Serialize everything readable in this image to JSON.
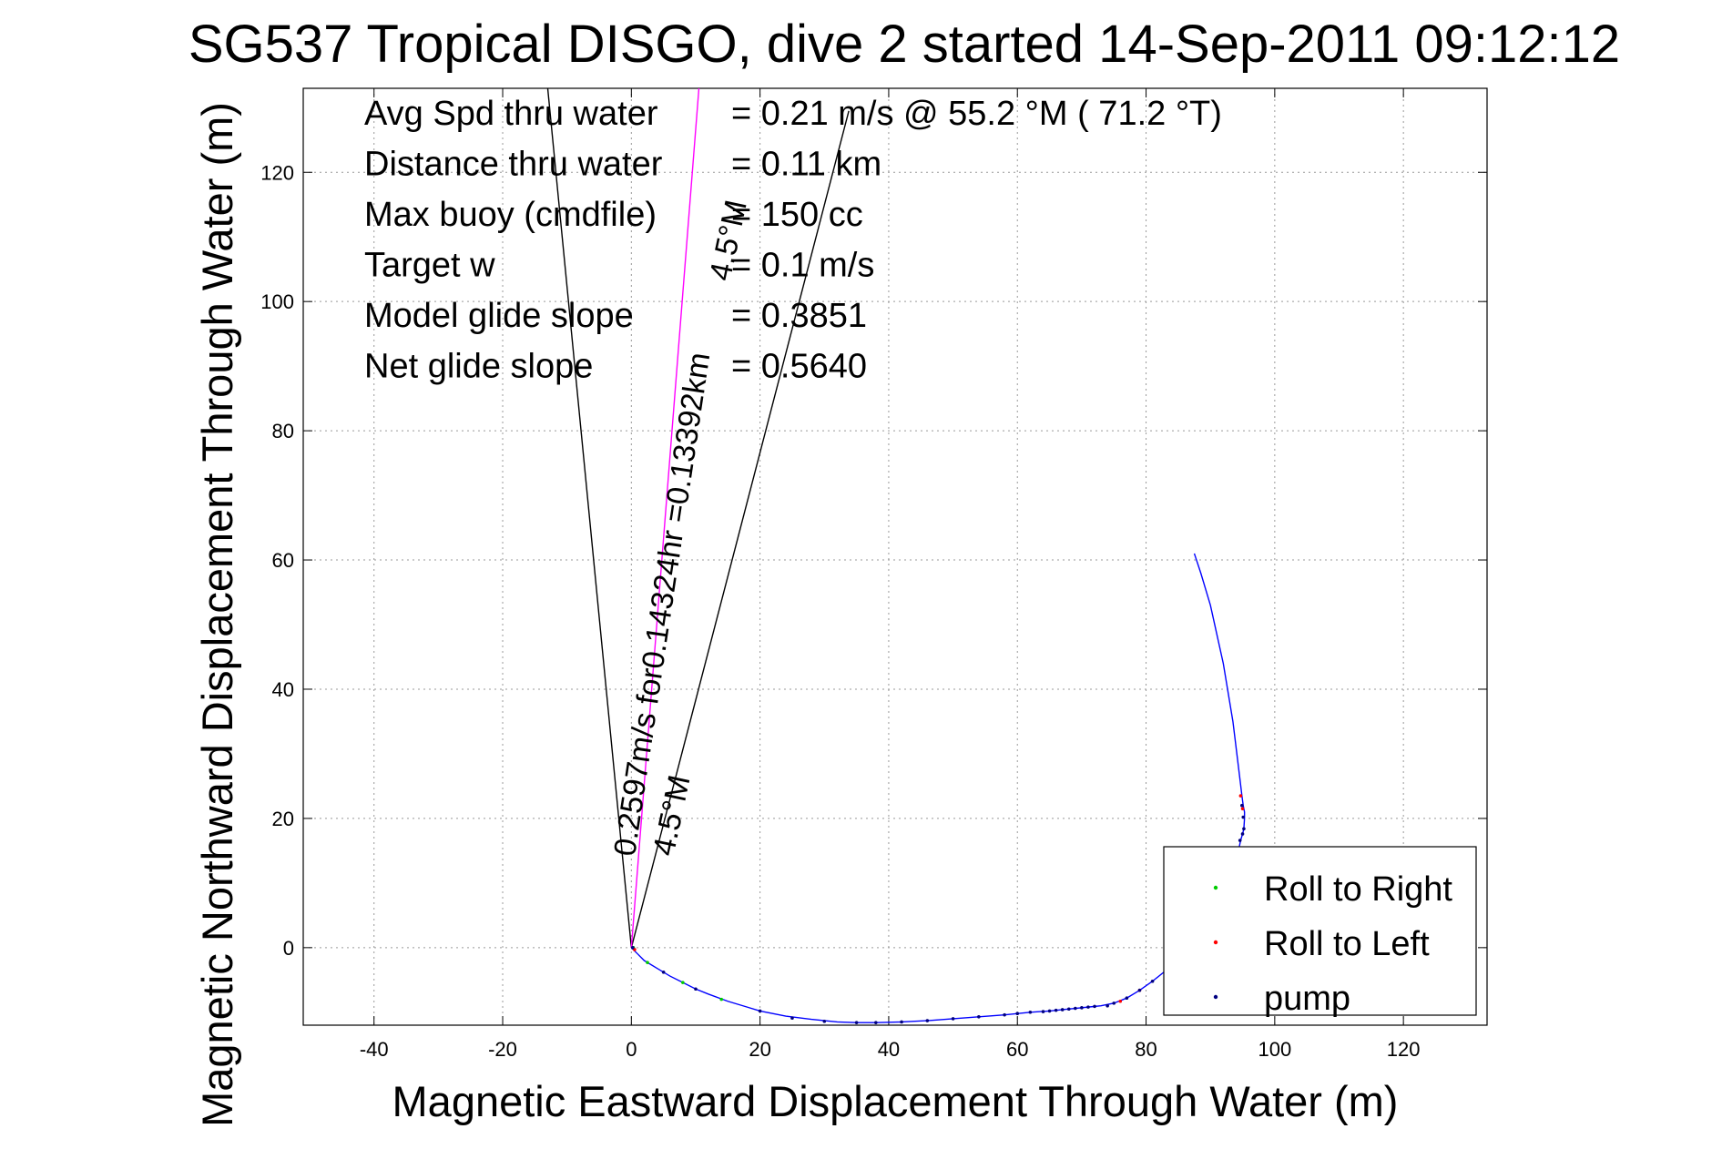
{
  "chart_data": {
    "type": "line",
    "title": "SG537 Tropical DISGO, dive 2 started 14-Sep-2011 09:12:12",
    "xlabel": "Magnetic Eastward Displacement Through Water (m)",
    "ylabel": "Magnetic Northward Displacement Through Water (m)",
    "xlim": [
      -51,
      133
    ],
    "ylim": [
      -12,
      133
    ],
    "xticks": [
      -40,
      -20,
      0,
      20,
      40,
      60,
      80,
      100,
      120
    ],
    "yticks": [
      0,
      20,
      40,
      60,
      80,
      100,
      120
    ],
    "grid": true,
    "legend_position": "bottom-right",
    "stats": [
      {
        "label": "Avg Spd thru water",
        "value": "=  0.21 m/s @  55.2 °M ( 71.2 °T)"
      },
      {
        "label": "Distance thru water",
        "value": "=  0.11 km"
      },
      {
        "label": "Max buoy (cmdfile)",
        "value": "= 150 cc"
      },
      {
        "label": "Target w",
        "value": "= 0.1 m/s"
      },
      {
        "label": "Model glide slope",
        "value": "= 0.3851"
      },
      {
        "label": "Net glide slope",
        "value": "= 0.5640"
      }
    ],
    "annotations": [
      {
        "text": "0.2597m/s for0.14324hr =0.13392km",
        "x": 0.5,
        "y": 14,
        "angle_deg": 8.5
      },
      {
        "text": "4.5°M",
        "x": 6.5,
        "y": 14,
        "angle_deg": 12
      },
      {
        "text": "4.5°M",
        "x": 15.3,
        "y": 103,
        "angle_deg": 12
      }
    ],
    "reference_lines": [
      {
        "name": "heading-line-left",
        "color": "#000000",
        "points": [
          [
            0,
            0
          ],
          [
            -13,
            133
          ]
        ]
      },
      {
        "name": "heading-line-right",
        "color": "#000000",
        "points": [
          [
            0,
            0
          ],
          [
            33.8,
            129.5
          ]
        ]
      },
      {
        "name": "predicted-track-line",
        "color": "#ff00ff",
        "points": [
          [
            0,
            0
          ],
          [
            10.5,
            133
          ]
        ]
      }
    ],
    "series": [
      {
        "name": "track",
        "color": "#0000ff",
        "x": [
          0,
          1,
          2,
          4,
          6,
          8,
          10,
          12,
          15,
          18,
          20,
          24,
          28,
          32,
          35,
          38,
          42,
          46,
          50,
          54,
          58,
          62,
          65,
          67,
          69,
          71,
          73,
          75,
          77,
          79,
          81,
          83,
          85,
          87,
          89,
          90,
          91,
          92,
          92.8,
          93.5,
          94,
          94.4,
          94.7,
          95,
          95.2,
          95.3,
          95.3,
          95.1,
          94.9,
          94.6,
          93.5,
          92,
          90,
          88.5,
          87.5
        ],
        "y": [
          0,
          -1,
          -2,
          -3.2,
          -4.4,
          -5.4,
          -6.4,
          -7.2,
          -8.3,
          -9.2,
          -9.8,
          -10.6,
          -11.1,
          -11.5,
          -11.6,
          -11.6,
          -11.5,
          -11.3,
          -11.0,
          -10.7,
          -10.4,
          -10.0,
          -9.8,
          -9.6,
          -9.4,
          -9.2,
          -9.0,
          -8.6,
          -7.8,
          -6.6,
          -5.2,
          -3.6,
          -1.8,
          0.2,
          2.4,
          3.8,
          5.4,
          7.2,
          9.2,
          11.4,
          13.4,
          15.2,
          16.6,
          17.6,
          18.4,
          20,
          21,
          22,
          23.5,
          26,
          35,
          44,
          53,
          58,
          61
        ]
      },
      {
        "name": "Roll to Right",
        "color": "#00cc00",
        "marker": "dot",
        "x": [
          0.3,
          2.5,
          8,
          14
        ],
        "y": [
          0,
          -2.3,
          -5.4,
          -8
        ]
      },
      {
        "name": "Roll to Left",
        "color": "#ff0000",
        "marker": "dot",
        "x": [
          0.5,
          76,
          79,
          94.7,
          95
        ],
        "y": [
          -0.3,
          -8.3,
          -6.6,
          23.5,
          21.5
        ]
      },
      {
        "name": "pump",
        "color": "#000080",
        "marker": "dot",
        "x": [
          0.2,
          5,
          10,
          20,
          25,
          30,
          35,
          38,
          42,
          46,
          50,
          54,
          58,
          60,
          62,
          64,
          65,
          66,
          67,
          68,
          69,
          70,
          71,
          72,
          74,
          75,
          77,
          79,
          81,
          83,
          85,
          87,
          89,
          91,
          93,
          94,
          94.6,
          95,
          95.2,
          95.1,
          94.9
        ],
        "y": [
          0,
          -3.8,
          -6.4,
          -9.8,
          -10.9,
          -11.4,
          -11.6,
          -11.6,
          -11.5,
          -11.3,
          -11.0,
          -10.7,
          -10.4,
          -10.2,
          -10.0,
          -9.9,
          -9.8,
          -9.7,
          -9.6,
          -9.5,
          -9.4,
          -9.3,
          -9.2,
          -9.1,
          -9.0,
          -8.6,
          -7.8,
          -6.6,
          -5.2,
          -3.6,
          -1.8,
          0.2,
          2.4,
          5.4,
          9.2,
          13.4,
          16.6,
          17.6,
          18.4,
          20.2,
          22
        ]
      }
    ],
    "legend": [
      "Roll to Right",
      "Roll to Left",
      "pump"
    ]
  }
}
